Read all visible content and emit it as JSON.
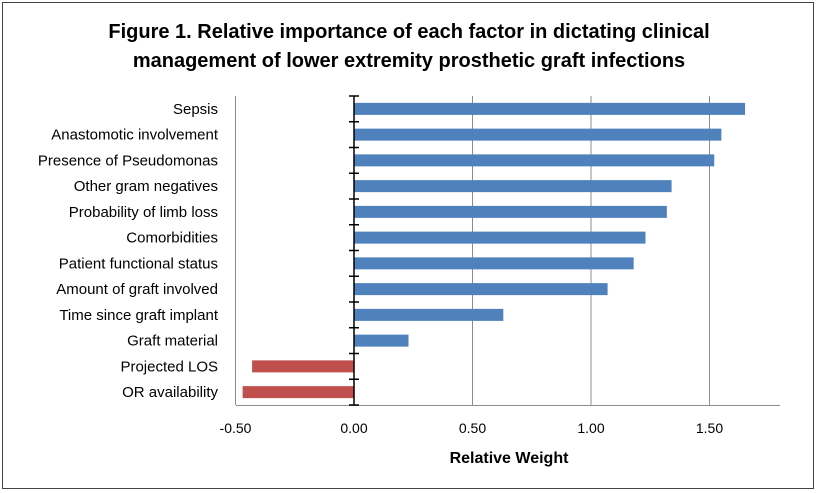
{
  "chart_data": {
    "type": "bar",
    "orientation": "horizontal",
    "title_line1": "Figure 1. Relative importance of each factor in dictating clinical",
    "title_line2": "management of lower extremity prosthetic graft infections",
    "xlabel": "Relative Weight",
    "ylabel": "",
    "xlim": [
      -0.5,
      1.8
    ],
    "xticks": [
      -0.5,
      0.0,
      0.5,
      1.0,
      1.5
    ],
    "xtick_labels": [
      "-0.50",
      "0.00",
      "0.50",
      "1.00",
      "1.50"
    ],
    "grid": "vertical",
    "categories": [
      "Sepsis",
      "Anastomotic involvement",
      "Presence of Pseudomonas",
      "Other gram negatives",
      "Probability of limb loss",
      "Comorbidities",
      "Patient functional status",
      "Amount of graft involved",
      "Time since graft implant",
      "Graft material",
      "Projected LOS",
      "OR availability"
    ],
    "values": [
      1.65,
      1.55,
      1.52,
      1.34,
      1.32,
      1.23,
      1.18,
      1.07,
      0.63,
      0.23,
      -0.43,
      -0.47
    ],
    "colors": {
      "positive": "#4F81BD",
      "negative": "#C0504D",
      "grid": "#8c8c8c",
      "axis": "#000000"
    }
  }
}
